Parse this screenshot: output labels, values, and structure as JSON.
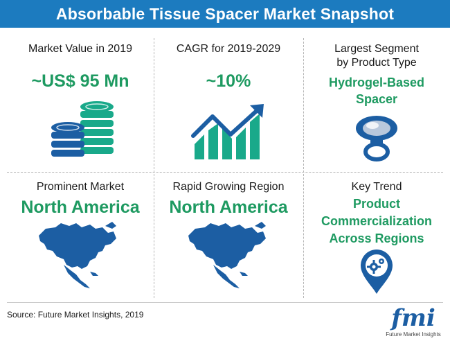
{
  "title": "Absorbable Tissue Spacer Market Snapshot",
  "cells": {
    "market_value": {
      "label": "Market Value in 2019",
      "value": "~US$ 95 Mn"
    },
    "cagr": {
      "label": "CAGR for 2019-2029",
      "value": "~10%"
    },
    "segment": {
      "label_line1": "Largest Segment",
      "label_line2": "by Product Type",
      "value_line1": "Hydrogel-Based",
      "value_line2": "Spacer"
    },
    "prominent": {
      "label": "Prominent Market",
      "value": "North America"
    },
    "growing": {
      "label": "Rapid Growing Region",
      "value": "North America"
    },
    "trend": {
      "label": "Key Trend",
      "value_line1": "Product",
      "value_line2": "Commercialization",
      "value_line3": "Across Regions"
    }
  },
  "source": "Source: Future Market Insights, 2019",
  "logo": {
    "text": "fmi",
    "subtitle": "Future Market Insights"
  },
  "colors": {
    "header": "#1c7bbf",
    "accent_green": "#1e9a61",
    "icon_blue": "#1c5ea3",
    "icon_teal": "#19a98a"
  },
  "icons": [
    "coin-stack-icon",
    "growth-chart-icon",
    "tissue-spacer-icon",
    "north-america-map-icon",
    "north-america-map-icon",
    "location-gear-icon"
  ]
}
